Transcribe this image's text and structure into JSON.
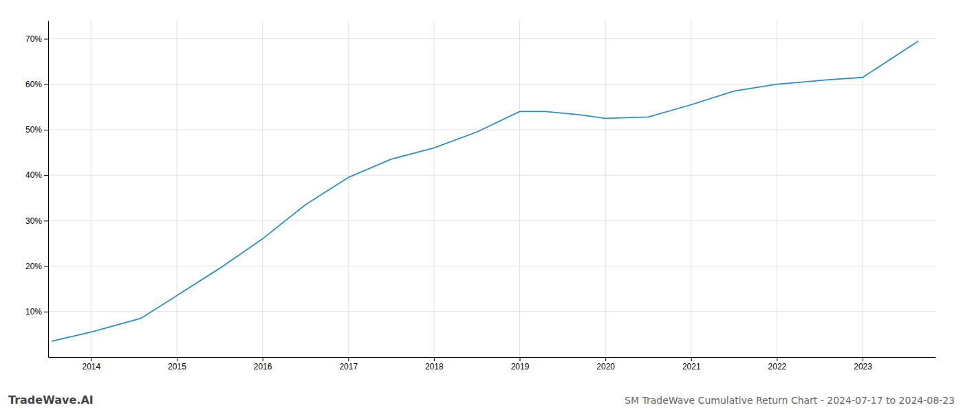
{
  "chart_data": {
    "type": "line",
    "title": "SM TradeWave Cumulative Return Chart - 2024-07-17 to 2024-08-23",
    "annotations": [
      "TradeWave.AI"
    ],
    "x": [
      2013.54,
      2014.0,
      2014.58,
      2015.0,
      2015.5,
      2016.0,
      2016.5,
      2017.0,
      2017.5,
      2018.0,
      2018.5,
      2019.0,
      2019.3,
      2019.7,
      2020.0,
      2020.5,
      2021.0,
      2021.5,
      2022.0,
      2022.2,
      2022.6,
      2023.0,
      2023.65
    ],
    "values": [
      3.5,
      5.5,
      8.5,
      13.5,
      19.5,
      26.0,
      33.5,
      39.5,
      43.5,
      46.0,
      49.5,
      54.0,
      54.0,
      53.3,
      52.5,
      52.8,
      55.5,
      58.5,
      60.0,
      60.3,
      61.0,
      61.5,
      69.5
    ],
    "color": "#2c8fc4",
    "xlim": [
      2013.5,
      2023.85
    ],
    "ylim": [
      0,
      74
    ],
    "xticks": [
      2014,
      2015,
      2016,
      2017,
      2018,
      2019,
      2020,
      2021,
      2022,
      2023
    ],
    "yticks": [
      {
        "value": 10,
        "label": "10%"
      },
      {
        "value": 20,
        "label": "20%"
      },
      {
        "value": 30,
        "label": "30%"
      },
      {
        "value": 40,
        "label": "40%"
      },
      {
        "value": 50,
        "label": "50%"
      },
      {
        "value": 60,
        "label": "60%"
      },
      {
        "value": 70,
        "label": "70%"
      }
    ],
    "grid": true
  }
}
